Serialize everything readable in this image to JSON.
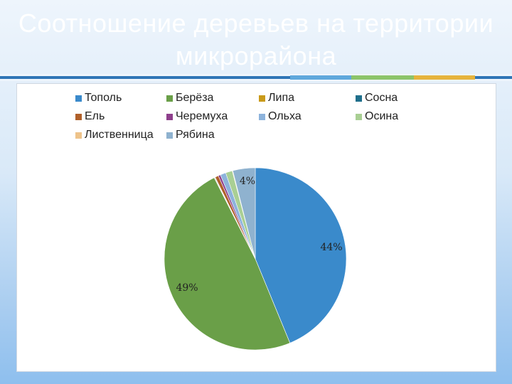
{
  "slide": {
    "title": "Соотношение деревьев на территории микрорайона"
  },
  "theme": {
    "title_color": "#ffffff",
    "rule_colors": [
      "#5fa8dc",
      "#8cc46a",
      "#e6b43c"
    ]
  },
  "chart_data": {
    "type": "pie",
    "legend_position": "top",
    "categories": [
      "Тополь",
      "Берёза",
      "Липа",
      "Сосна",
      "Ель",
      "Черемуха",
      "Ольха",
      "Осина",
      "Лиственница",
      "Рябина"
    ],
    "values": [
      44,
      49,
      0.1,
      0.1,
      0.6,
      0.4,
      1.0,
      1.2,
      0.1,
      4.0
    ],
    "colors": [
      "#3a8acb",
      "#6a9f48",
      "#c99a1a",
      "#1f6f8b",
      "#b0602a",
      "#8e3f8c",
      "#8db3dc",
      "#a9cf94",
      "#eec38a",
      "#8fb2cf"
    ],
    "data_labels": [
      {
        "index": 0,
        "text": "44%"
      },
      {
        "index": 1,
        "text": "49%"
      },
      {
        "index": 9,
        "text": "4%"
      }
    ]
  }
}
